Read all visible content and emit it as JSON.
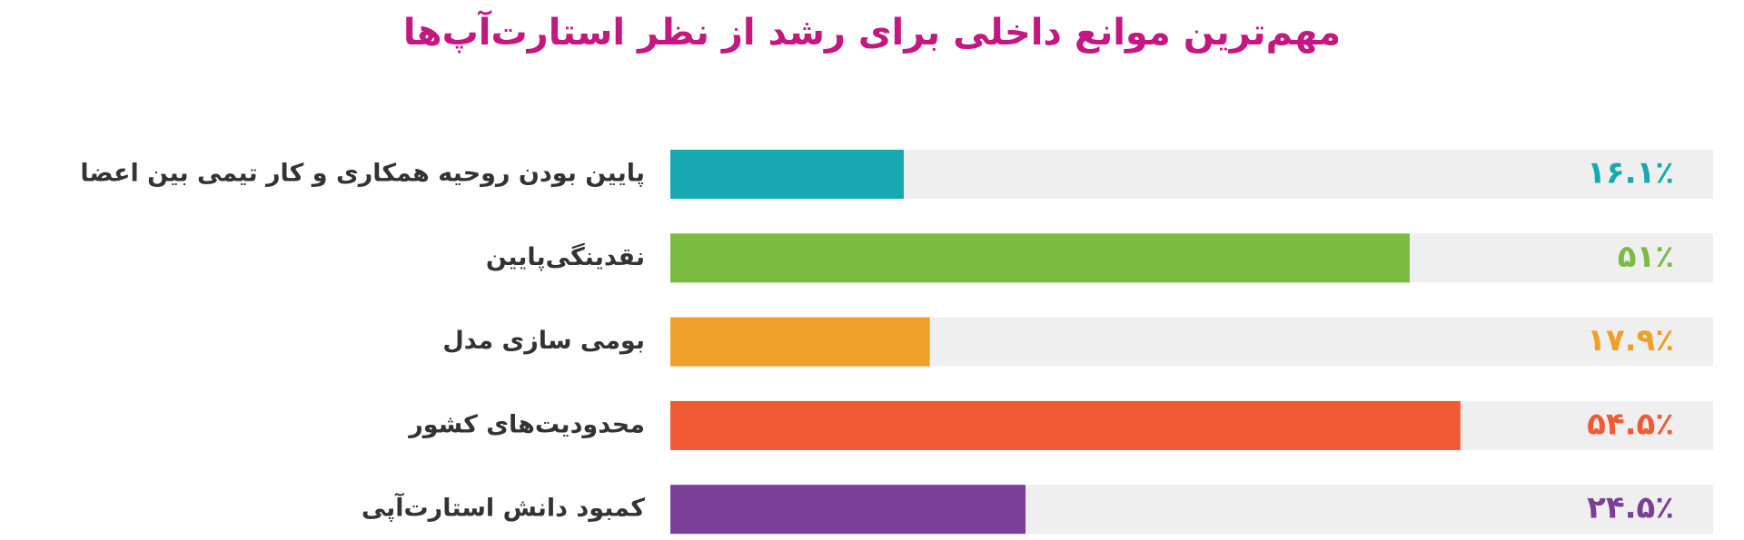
{
  "chart_data": {
    "type": "bar",
    "orientation": "horizontal",
    "title": "مهم‌ترین موانع داخلی برای رشد از نظر استارت‌آپ‌ها",
    "title_color": "#c4177f",
    "categories": [
      "پایین بودن روحیه همکاری و کار تیمی بین اعضا",
      "نقدینگی‌پایین",
      "بومی سازی مدل",
      "محدودیت‌های کشور",
      "کمبود دانش استارت‌آپی"
    ],
    "values": [
      16.1,
      51,
      17.9,
      54.5,
      24.5
    ],
    "value_labels": [
      "۱۶.۱٪",
      "۵۱٪",
      "۱۷.۹٪",
      "۵۴.۵٪",
      "۲۴.۵٪"
    ],
    "colors": [
      "#17a9b1",
      "#7bbb42",
      "#eea02a",
      "#f05a35",
      "#7a3f98"
    ]
  }
}
